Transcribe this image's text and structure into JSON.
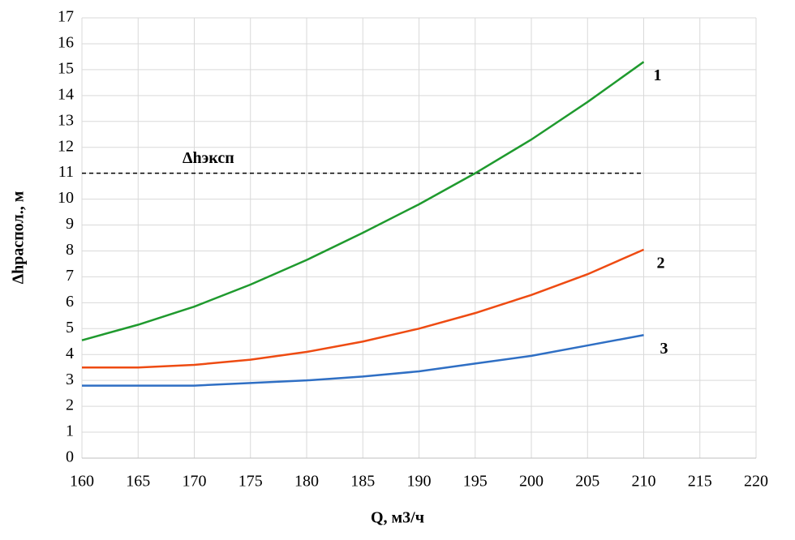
{
  "chart_data": {
    "type": "line",
    "xlabel": "Q, м3/ч",
    "ylabel": "Δhраспол., м",
    "x": [
      160,
      165,
      170,
      175,
      180,
      185,
      190,
      195,
      200,
      205,
      210
    ],
    "series": [
      {
        "name": "1",
        "color": "#1f9a2e",
        "values": [
          4.55,
          5.15,
          5.85,
          6.7,
          7.65,
          8.7,
          9.8,
          11.0,
          12.3,
          13.75,
          15.3
        ]
      },
      {
        "name": "2",
        "color": "#ee4b12",
        "values": [
          3.5,
          3.5,
          3.6,
          3.8,
          4.1,
          4.5,
          5.0,
          5.6,
          6.3,
          7.1,
          8.05
        ]
      },
      {
        "name": "3",
        "color": "#2f6fc4",
        "values": [
          2.8,
          2.8,
          2.8,
          2.9,
          3.0,
          3.15,
          3.35,
          3.65,
          3.95,
          4.35,
          4.75
        ]
      }
    ],
    "reference_line": {
      "label": "Δhэксп",
      "value": 11,
      "xlim": [
        160,
        210
      ]
    },
    "xlim": [
      160,
      220
    ],
    "xticks": [
      160,
      165,
      170,
      175,
      180,
      185,
      190,
      195,
      200,
      205,
      210,
      215,
      220
    ],
    "ylim": [
      0,
      17
    ],
    "yticks": [
      0,
      1,
      2,
      3,
      4,
      5,
      6,
      7,
      8,
      9,
      10,
      11,
      12,
      13,
      14,
      15,
      16,
      17
    ],
    "grid": true
  }
}
